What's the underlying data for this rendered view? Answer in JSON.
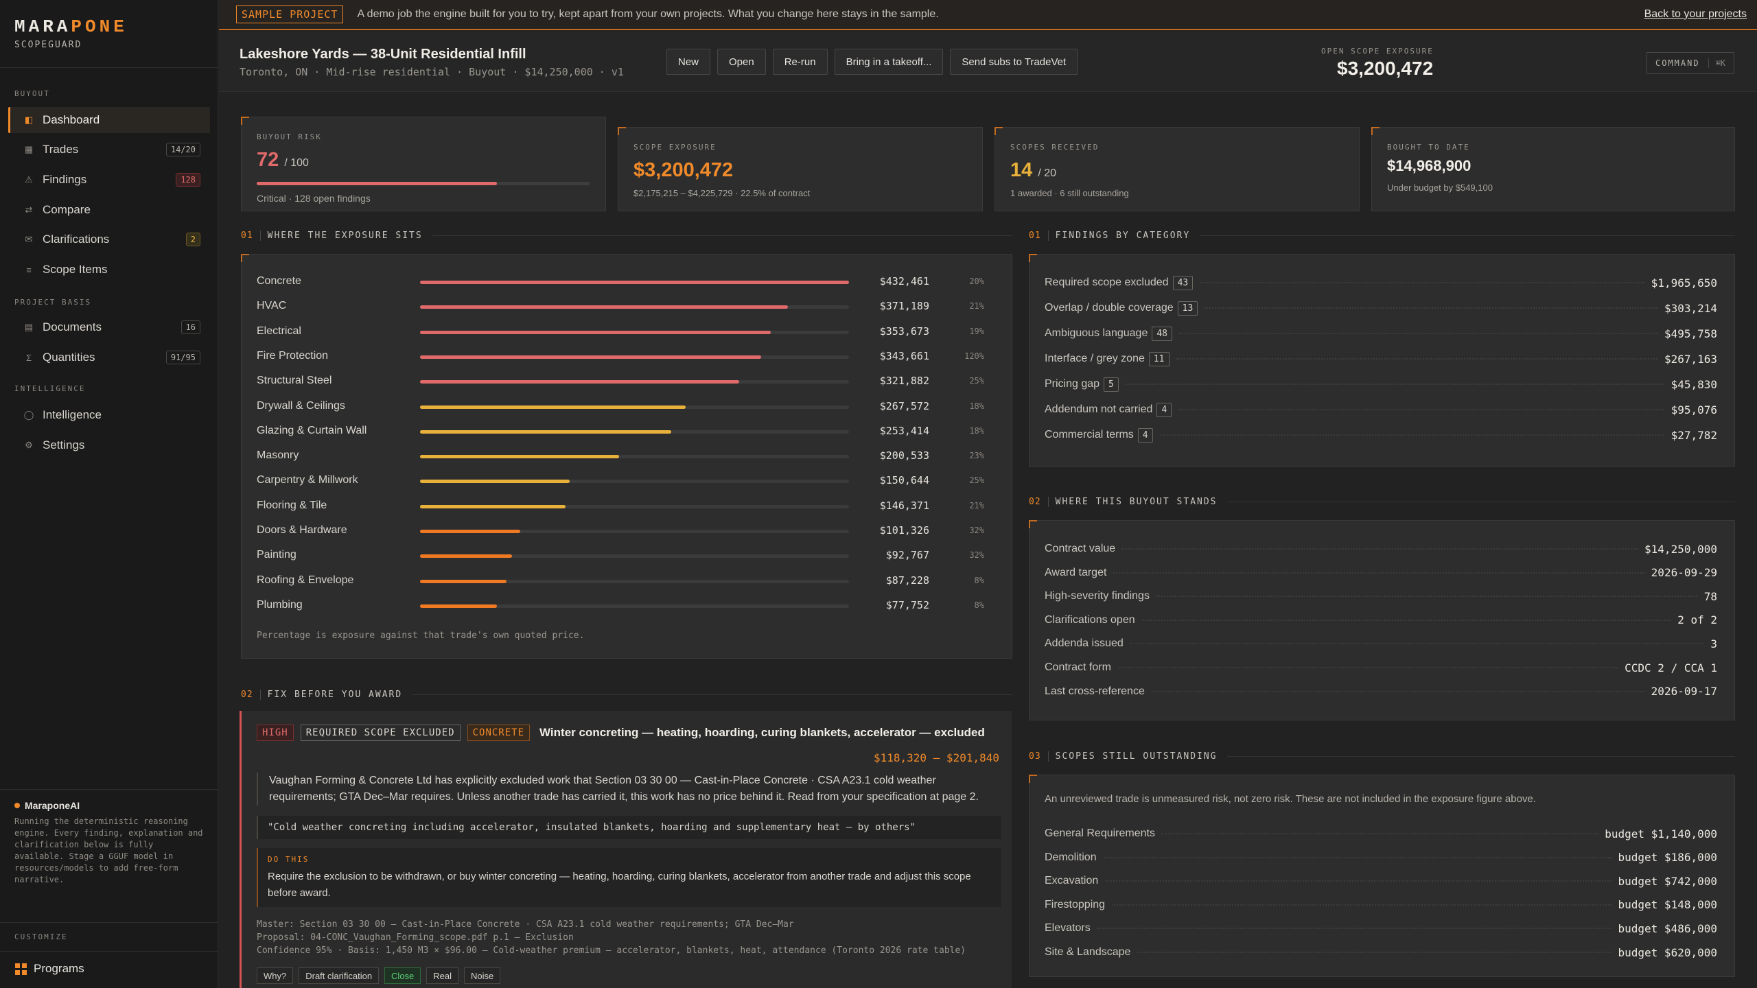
{
  "app": {
    "brand_left": "MARA",
    "brand_right": "PONE",
    "product": "SCOPEGUARD",
    "accent": "#f08a2a"
  },
  "sidebar": {
    "sections": [
      "BUYOUT",
      "PROJECT BASIS",
      "INTELLIGENCE"
    ],
    "items": [
      {
        "label": "Dashboard",
        "icon": "dashboard-icon",
        "badge": ""
      },
      {
        "label": "Trades",
        "icon": "grid-icon",
        "badge": "14/20"
      },
      {
        "label": "Findings",
        "icon": "warning-icon",
        "badge": "128"
      },
      {
        "label": "Compare",
        "icon": "compare-icon",
        "badge": ""
      },
      {
        "label": "Clarifications",
        "icon": "mail-icon",
        "badge": "2"
      },
      {
        "label": "Scope Items",
        "icon": "list-icon",
        "badge": ""
      },
      {
        "label": "Documents",
        "icon": "document-icon",
        "badge": "16"
      },
      {
        "label": "Quantities",
        "icon": "sigma-icon",
        "badge": "91/95"
      },
      {
        "label": "Intelligence",
        "icon": "circle-icon",
        "badge": ""
      },
      {
        "label": "Settings",
        "icon": "gear-icon",
        "badge": ""
      }
    ],
    "ai": {
      "title": "MaraponeAI",
      "text": "Running the deterministic reasoning engine. Every finding, explanation and clarification below is fully available. Stage a GGUF model in resources/models to add free-form narrative."
    },
    "customize": "CUSTOMIZE",
    "programs": "Programs"
  },
  "banner": {
    "tag": "SAMPLE PROJECT",
    "message": "A demo job the engine built for you to try, kept apart from your own projects. What you change here stays in the sample.",
    "back": "Back to your projects"
  },
  "project": {
    "title": "Lakeshore Yards — 38-Unit Residential Infill",
    "subtitle": "Toronto, ON · Mid-rise residential · Buyout · $14,250,000 · v1",
    "buttons": [
      "New",
      "Open",
      "Re-run",
      "Bring in a takeoff...",
      "Send subs to TradeVet"
    ],
    "exposure_label": "OPEN SCOPE EXPOSURE",
    "exposure_value": "$3,200,472",
    "command_label": "COMMAND",
    "command_key": "⌘K"
  },
  "kpis": {
    "risk": {
      "label": "BUYOUT RISK",
      "value": "72",
      "suffix": "/ 100",
      "progress": 0.72,
      "sub": "Critical · 128 open findings"
    },
    "exposure": {
      "label": "SCOPE EXPOSURE",
      "value": "$3,200,472",
      "sub": "$2,175,215 – $4,225,729 · 22.5% of contract"
    },
    "received": {
      "label": "SCOPES RECEIVED",
      "value": "14",
      "suffix": "/ 20",
      "sub": "1 awarded · 6 still outstanding"
    },
    "bought": {
      "label": "BOUGHT TO DATE",
      "value": "$14,968,900",
      "sub": "Under budget by $549,100"
    }
  },
  "exposure": {
    "num": "01",
    "title": "WHERE THE EXPOSURE SITS",
    "note": "Percentage is exposure against that trade's own quoted price.",
    "max": 432461,
    "rows": [
      {
        "name": "Concrete",
        "value": 432461,
        "amount": "$432,461",
        "pct": "20%",
        "color": "#e06a6a"
      },
      {
        "name": "HVAC",
        "value": 371189,
        "amount": "$371,189",
        "pct": "21%",
        "color": "#e06a6a"
      },
      {
        "name": "Electrical",
        "value": 353673,
        "amount": "$353,673",
        "pct": "19%",
        "color": "#e06a6a"
      },
      {
        "name": "Fire Protection",
        "value": 343661,
        "amount": "$343,661",
        "pct": "120%",
        "color": "#e06a6a"
      },
      {
        "name": "Structural Steel",
        "value": 321882,
        "amount": "$321,882",
        "pct": "25%",
        "color": "#e06a6a"
      },
      {
        "name": "Drywall & Ceilings",
        "value": 267572,
        "amount": "$267,572",
        "pct": "18%",
        "color": "#e8b13b"
      },
      {
        "name": "Glazing & Curtain Wall",
        "value": 253414,
        "amount": "$253,414",
        "pct": "18%",
        "color": "#e8b13b"
      },
      {
        "name": "Masonry",
        "value": 200533,
        "amount": "$200,533",
        "pct": "23%",
        "color": "#e8b13b"
      },
      {
        "name": "Carpentry & Millwork",
        "value": 150644,
        "amount": "$150,644",
        "pct": "25%",
        "color": "#e8b13b"
      },
      {
        "name": "Flooring & Tile",
        "value": 146371,
        "amount": "$146,371",
        "pct": "21%",
        "color": "#e8b13b"
      },
      {
        "name": "Doors & Hardware",
        "value": 101326,
        "amount": "$101,326",
        "pct": "32%",
        "color": "#f07a24"
      },
      {
        "name": "Painting",
        "value": 92767,
        "amount": "$92,767",
        "pct": "32%",
        "color": "#f07a24"
      },
      {
        "name": "Roofing & Envelope",
        "value": 87228,
        "amount": "$87,228",
        "pct": "8%",
        "color": "#f07a24"
      },
      {
        "name": "Plumbing",
        "value": 77752,
        "amount": "$77,752",
        "pct": "8%",
        "color": "#f07a24"
      }
    ]
  },
  "findings_by_category": {
    "num": "01",
    "title": "FINDINGS BY CATEGORY",
    "rows": [
      {
        "name": "Required scope excluded",
        "count": "43",
        "value": "$1,965,650"
      },
      {
        "name": "Overlap / double coverage",
        "count": "13",
        "value": "$303,214"
      },
      {
        "name": "Ambiguous language",
        "count": "48",
        "value": "$495,758"
      },
      {
        "name": "Interface / grey zone",
        "count": "11",
        "value": "$267,163"
      },
      {
        "name": "Pricing gap",
        "count": "5",
        "value": "$45,830"
      },
      {
        "name": "Addendum not carried",
        "count": "4",
        "value": "$95,076"
      },
      {
        "name": "Commercial terms",
        "count": "4",
        "value": "$27,782"
      }
    ]
  },
  "buyout": {
    "num": "02",
    "title": "WHERE THIS BUYOUT STANDS",
    "rows": [
      {
        "k": "Contract value",
        "v": "$14,250,000"
      },
      {
        "k": "Award target",
        "v": "2026-09-29"
      },
      {
        "k": "High-severity findings",
        "v": "78"
      },
      {
        "k": "Clarifications open",
        "v": "2 of 2"
      },
      {
        "k": "Addenda issued",
        "v": "3"
      },
      {
        "k": "Contract form",
        "v": "CCDC 2 / CCA 1"
      },
      {
        "k": "Last cross-reference",
        "v": "2026-09-17"
      }
    ]
  },
  "outstanding": {
    "num": "03",
    "title": "SCOPES STILL OUTSTANDING",
    "note": "An unreviewed trade is unmeasured risk, not zero risk. These are not included in the exposure figure above.",
    "rows": [
      {
        "k": "General Requirements",
        "v": "budget $1,140,000"
      },
      {
        "k": "Demolition",
        "v": "budget $186,000"
      },
      {
        "k": "Excavation",
        "v": "budget $742,000"
      },
      {
        "k": "Firestopping",
        "v": "budget $148,000"
      },
      {
        "k": "Elevators",
        "v": "budget $486,000"
      },
      {
        "k": "Site & Landscape",
        "v": "budget $620,000"
      }
    ]
  },
  "fix": {
    "num": "02",
    "title": "FIX BEFORE YOU AWARD",
    "finding": {
      "severity": "HIGH",
      "category": "REQUIRED SCOPE EXCLUDED",
      "trade": "CONCRETE",
      "title": "Winter concreting — heating, hoarding, curing blankets, accelerator — excluded",
      "range": "$118,320 – $201,840",
      "description": "Vaughan Forming & Concrete Ltd has explicitly excluded work that Section 03 30 00 — Cast-in-Place Concrete · CSA A23.1 cold weather requirements; GTA Dec–Mar requires. Unless another trade has carried it, this work has no price behind it. Read from your specification at page 2.",
      "quote": "\"Cold weather concreting including accelerator, insulated blankets, hoarding and supplementary heat — by others\"",
      "do_label": "DO THIS",
      "do_text": "Require the exclusion to be withdrawn, or buy winter concreting — heating, hoarding, curing blankets, accelerator from another trade and adjust this scope before award.",
      "meta": [
        "Master: Section 03 30 00 — Cast-in-Place Concrete · CSA A23.1 cold weather requirements; GTA Dec–Mar",
        "Proposal: 04-CONC_Vaughan_Forming_scope.pdf p.1 — Exclusion",
        "Confidence 95% · Basis: 1,450 M3 × $96.00 — Cold-weather premium — accelerator, blankets, heat, attendance (Toronto 2026 rate table)"
      ],
      "actions": [
        "Why?",
        "Draft clarification",
        "Close",
        "Real",
        "Noise"
      ]
    }
  }
}
